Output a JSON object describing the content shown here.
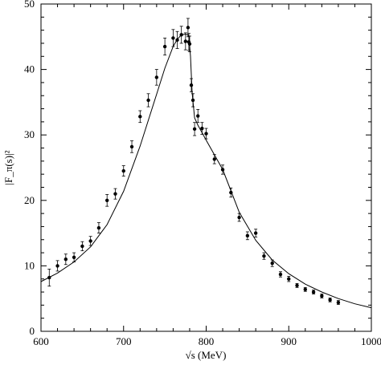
{
  "chart_data": {
    "type": "scatter",
    "xlabel": "√s (MeV)",
    "ylabel": "|F_π(s)|²",
    "xlim": [
      600,
      1000
    ],
    "ylim": [
      0,
      50
    ],
    "xticks": [
      600,
      700,
      800,
      900,
      1000
    ],
    "yticks": [
      0,
      10,
      20,
      30,
      40,
      50
    ],
    "grid": false,
    "series": [
      {
        "kind": "points-with-errorbars",
        "x": [
          610,
          620,
          630,
          640,
          650,
          660,
          670,
          680,
          690,
          700,
          710,
          720,
          730,
          740,
          750,
          760,
          765,
          770,
          775,
          778,
          779,
          780,
          782,
          784,
          786,
          790,
          795,
          800,
          810,
          820,
          830,
          840,
          850,
          860,
          870,
          880,
          890,
          900,
          910,
          920,
          930,
          940,
          950,
          960
        ],
        "y": [
          8.2,
          10.0,
          11.0,
          11.3,
          13.0,
          13.8,
          15.8,
          20.0,
          21.0,
          24.5,
          28.2,
          32.8,
          35.3,
          38.8,
          43.5,
          44.8,
          44.5,
          45.3,
          44.3,
          46.4,
          44.2,
          43.9,
          37.6,
          35.3,
          30.9,
          32.9,
          31.0,
          30.2,
          26.3,
          24.7,
          21.2,
          17.4,
          14.6,
          15.0,
          11.5,
          10.4,
          8.7,
          8.0,
          7.0,
          6.4,
          6.0,
          5.4,
          4.8,
          4.4
        ],
        "err": [
          1.3,
          0.8,
          0.8,
          0.7,
          0.7,
          0.7,
          0.8,
          0.9,
          0.8,
          0.8,
          0.9,
          0.9,
          1.0,
          1.2,
          1.3,
          1.3,
          1.3,
          1.3,
          1.3,
          1.4,
          1.3,
          1.2,
          1.0,
          1.0,
          1.0,
          1.0,
          0.9,
          0.8,
          0.7,
          0.7,
          0.7,
          0.6,
          0.6,
          0.6,
          0.5,
          0.5,
          0.4,
          0.4,
          0.3,
          0.3,
          0.3,
          0.3,
          0.3,
          0.3
        ]
      },
      {
        "kind": "fit-curve",
        "x": [
          600,
          620,
          640,
          660,
          680,
          700,
          720,
          740,
          750,
          760,
          765,
          770,
          775,
          779,
          781,
          783,
          786,
          790,
          800,
          820,
          840,
          860,
          880,
          900,
          920,
          940,
          960,
          980,
          1000
        ],
        "y": [
          7.6,
          8.9,
          10.6,
          12.9,
          16.3,
          21.4,
          28.3,
          36.2,
          40.2,
          43.5,
          44.6,
          45.3,
          45.4,
          45.2,
          42.0,
          36.5,
          32.6,
          31.5,
          29.2,
          24.7,
          18.2,
          13.9,
          10.9,
          8.8,
          7.2,
          6.0,
          5.0,
          4.2,
          3.6
        ]
      }
    ]
  }
}
